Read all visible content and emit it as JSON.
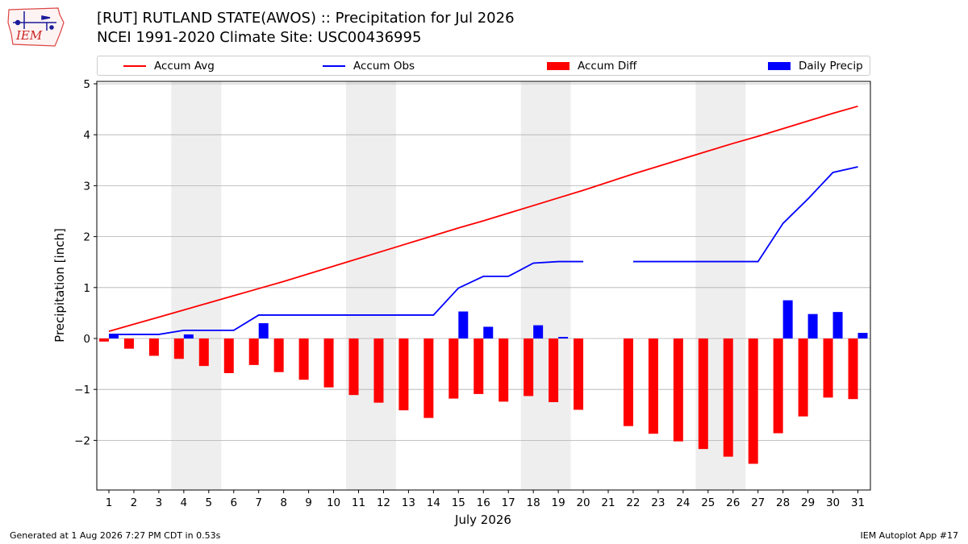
{
  "header": {
    "title_line1": "[RUT] RUTLAND STATE(AWOS) :: Precipitation for Jul 2026",
    "title_line2": "NCEI 1991-2020 Climate Site: USC00436995",
    "logo_text": "IEM"
  },
  "legend": [
    {
      "label": "Accum Avg",
      "kind": "line",
      "color": "#ff0000"
    },
    {
      "label": "Accum Obs",
      "kind": "line",
      "color": "#0000ff"
    },
    {
      "label": "Accum Diff",
      "kind": "bar",
      "color": "#ff0000"
    },
    {
      "label": "Daily Precip",
      "kind": "bar",
      "color": "#0000ff"
    }
  ],
  "footer": {
    "generated": "Generated at 1 Aug 2026 7:27 PM CDT in 0.53s",
    "app": "IEM Autoplot App #17"
  },
  "colors": {
    "avg": "#ff0000",
    "obs": "#0000ff",
    "diff": "#ff0000",
    "daily": "#0000ff",
    "weekend_shade": "#eeeeee",
    "grid": "#b0b0b0"
  },
  "chart_data": {
    "type": "bar",
    "xlabel": "July 2026",
    "ylabel": "Precipitation [inch]",
    "ylim": [
      -3,
      5
    ],
    "yticks": [
      -2,
      -1,
      0,
      1,
      2,
      3,
      4,
      5
    ],
    "ytick_labels": [
      "−2",
      "−1",
      "0",
      "1",
      "2",
      "3",
      "4",
      "5"
    ],
    "x": [
      1,
      2,
      3,
      4,
      5,
      6,
      7,
      8,
      9,
      10,
      11,
      12,
      13,
      14,
      15,
      16,
      17,
      18,
      19,
      20,
      21,
      22,
      23,
      24,
      25,
      26,
      27,
      28,
      29,
      30,
      31
    ],
    "shaded_day_ranges": [
      [
        4,
        5
      ],
      [
        11,
        12
      ],
      [
        18,
        19
      ],
      [
        25,
        26
      ]
    ],
    "grid": "y",
    "series": [
      {
        "name": "Accum Avg",
        "kind": "line",
        "values": [
          0.14,
          0.28,
          0.42,
          0.56,
          0.7,
          0.84,
          0.98,
          1.12,
          1.27,
          1.42,
          1.57,
          1.72,
          1.87,
          2.02,
          2.17,
          2.31,
          2.46,
          2.61,
          2.76,
          2.91,
          3.07,
          3.23,
          3.38,
          3.53,
          3.68,
          3.83,
          3.97,
          4.12,
          4.27,
          4.42,
          4.56
        ]
      },
      {
        "name": "Accum Obs",
        "kind": "line",
        "values": [
          0.08,
          0.08,
          0.08,
          0.16,
          0.16,
          0.16,
          0.46,
          0.46,
          0.46,
          0.46,
          0.46,
          0.46,
          0.46,
          0.46,
          0.99,
          1.22,
          1.22,
          1.48,
          1.51,
          1.51,
          null,
          1.51,
          1.51,
          1.51,
          1.51,
          1.51,
          1.51,
          2.26,
          2.74,
          3.26,
          3.37
        ]
      },
      {
        "name": "Accum Diff",
        "kind": "bar",
        "values": [
          -0.06,
          -0.2,
          -0.34,
          -0.4,
          -0.54,
          -0.68,
          -0.52,
          -0.66,
          -0.81,
          -0.96,
          -1.11,
          -1.26,
          -1.41,
          -1.56,
          -1.18,
          -1.09,
          -1.24,
          -1.13,
          -1.25,
          -1.4,
          null,
          -1.72,
          -1.87,
          -2.02,
          -2.17,
          -2.32,
          -2.46,
          -1.86,
          -1.53,
          -1.16,
          -1.19
        ]
      },
      {
        "name": "Daily Precip",
        "kind": "bar",
        "values": [
          0.08,
          0,
          0,
          0.08,
          0,
          0,
          0.3,
          0,
          0,
          0,
          0,
          0,
          0,
          0,
          0.53,
          0.23,
          0,
          0.26,
          0.03,
          0,
          null,
          0,
          0,
          0,
          0,
          0,
          0,
          0.75,
          0.48,
          0.52,
          0.11
        ]
      }
    ]
  }
}
